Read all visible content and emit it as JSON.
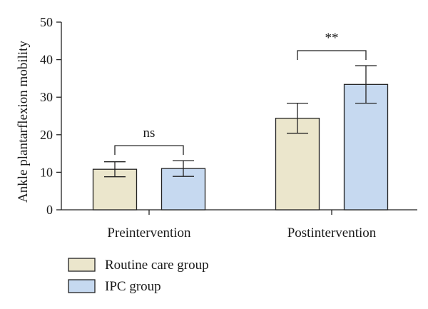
{
  "chart_data": {
    "type": "bar",
    "categories": [
      "Preintervention",
      "Postintervention"
    ],
    "series": [
      {
        "name": "Routine care group",
        "values": [
          10.8,
          24.4
        ],
        "errors": [
          2.0,
          4.0
        ],
        "color": "#ebe6cc"
      },
      {
        "name": "IPC group",
        "values": [
          11.0,
          33.4
        ],
        "errors": [
          2.1,
          5.0
        ],
        "color": "#c6d9f0"
      }
    ],
    "ylabel": "Ankle plantarflexion mobility",
    "xlabel": "",
    "title": "",
    "ylim": [
      0,
      50
    ],
    "yticks": [
      "0",
      "10",
      "20",
      "30",
      "40",
      "50"
    ],
    "significance": [
      "ns",
      "**"
    ],
    "grid": false,
    "legend_position": "bottom-left"
  }
}
